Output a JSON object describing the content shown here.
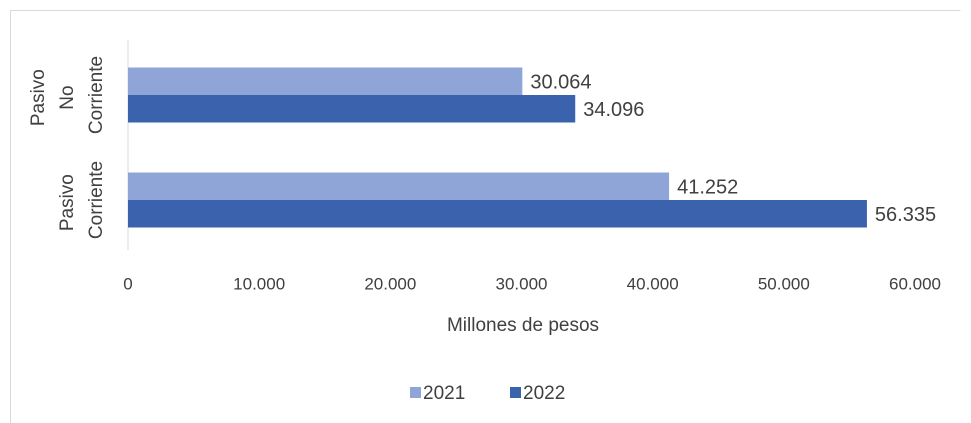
{
  "chart_data": {
    "type": "hbar",
    "categories": [
      "Pasivo No Corriente",
      "Pasivo Corriente"
    ],
    "series": [
      {
        "name": "2021",
        "color": "#8fa5d8",
        "values": [
          30064,
          41252
        ],
        "value_labels": [
          "30.064",
          "41.252"
        ]
      },
      {
        "name": "2022",
        "color": "#3a62ad",
        "values": [
          34096,
          56335
        ],
        "value_labels": [
          "34.096",
          "56.335"
        ]
      }
    ],
    "xlabel": "Millones de pesos",
    "xlim": [
      0,
      60000
    ],
    "xticks": [
      0,
      {
        "value": 10000,
        "label": "10.000"
      },
      {
        "value": 20000,
        "label": "20.000"
      },
      {
        "value": 30000,
        "label": "30.000"
      },
      {
        "value": 40000,
        "label": "40.000"
      },
      {
        "value": 50000,
        "label": "50.000"
      },
      {
        "value": 60000,
        "label": "60.000"
      }
    ],
    "legend": "bottom"
  }
}
